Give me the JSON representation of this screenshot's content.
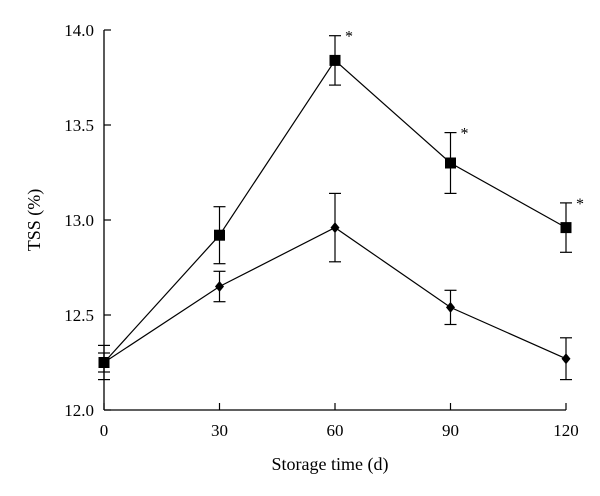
{
  "chart_data": {
    "type": "line",
    "xlabel": "Storage time (d)",
    "ylabel": "TSS (%)",
    "xlim": [
      0,
      120
    ],
    "ylim": [
      12.0,
      14.0
    ],
    "xticks": [
      "0",
      "30",
      "60",
      "90",
      "120"
    ],
    "yticks": [
      "12.0",
      "12.5",
      "13.0",
      "13.5",
      "14.0"
    ],
    "x": [
      0,
      30,
      60,
      90,
      120
    ],
    "grid": false,
    "series": [
      {
        "marker": "square",
        "values": [
          12.25,
          12.92,
          13.84,
          13.3,
          12.96
        ],
        "errors": [
          0.09,
          0.15,
          0.13,
          0.16,
          0.13
        ],
        "annotations": [
          "",
          "",
          "*",
          "*",
          "*"
        ]
      },
      {
        "marker": "diamond",
        "values": [
          12.25,
          12.65,
          12.96,
          12.54,
          12.27
        ],
        "errors": [
          0.05,
          0.08,
          0.18,
          0.09,
          0.11
        ],
        "annotations": [
          "",
          "",
          "",
          "",
          ""
        ]
      }
    ]
  }
}
